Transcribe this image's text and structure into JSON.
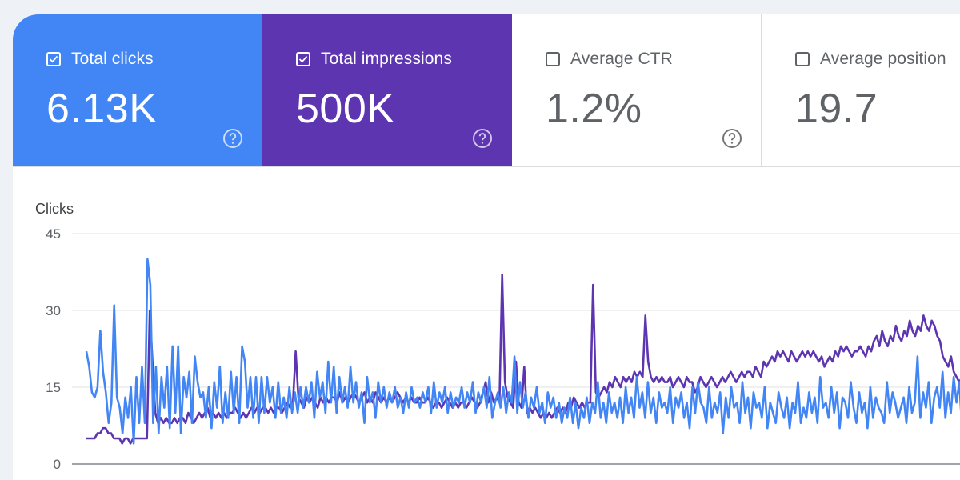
{
  "colors": {
    "clicks": "#4285f4",
    "impressions": "#5e35b1"
  },
  "cards": [
    {
      "label": "Total clicks",
      "value": "6.13K",
      "checked": true,
      "bg": "#4285f4",
      "icon": "help-circle-icon"
    },
    {
      "label": "Total impressions",
      "value": "500K",
      "checked": true,
      "bg": "#5e35b1",
      "icon": "help-circle-icon"
    },
    {
      "label": "Average CTR",
      "value": "1.2%",
      "checked": false,
      "bg": "#ffffff",
      "icon": "help-circle-icon"
    },
    {
      "label": "Average position",
      "value": "19.7",
      "checked": false,
      "bg": "#ffffff",
      "icon": "help-circle-icon"
    }
  ],
  "chart_data": {
    "type": "line",
    "ylabel": "Clicks",
    "ylim": [
      0,
      45
    ],
    "yticks": [
      0,
      15,
      30,
      45
    ],
    "grid": true,
    "series": [
      {
        "values": [
          22,
          19,
          14,
          13,
          15,
          26,
          18,
          14,
          8,
          12,
          31,
          13,
          11,
          6,
          13,
          9,
          15,
          4,
          17,
          8,
          19,
          8,
          40,
          35,
          8,
          19,
          6,
          17,
          11,
          19,
          7,
          23,
          10,
          23,
          6,
          17,
          13,
          18,
          8,
          21,
          16,
          13,
          14,
          9,
          15,
          7,
          16,
          11,
          19,
          8,
          14,
          9,
          18,
          10,
          17,
          8,
          23,
          20,
          11,
          17,
          9,
          17,
          8,
          17,
          10,
          17,
          12,
          15,
          9,
          16,
          10,
          13,
          9,
          15,
          10,
          14,
          10,
          15,
          11,
          15,
          12,
          16,
          9,
          18,
          13,
          16,
          10,
          20,
          12,
          19,
          10,
          17,
          12,
          15,
          11,
          19,
          12,
          16,
          11,
          14,
          8,
          17,
          12,
          14,
          9,
          16,
          12,
          15,
          11,
          14,
          12,
          15,
          11,
          13,
          10,
          14,
          11,
          15,
          12,
          13,
          11,
          14,
          12,
          15,
          10,
          16,
          11,
          14,
          12,
          15,
          10,
          14,
          11,
          13,
          12,
          15,
          11,
          14,
          12,
          16,
          10,
          14,
          12,
          15,
          11,
          17,
          9,
          12,
          14,
          11,
          15,
          10,
          14,
          12,
          21,
          10,
          16,
          11,
          14,
          9,
          13,
          11,
          15,
          10,
          12,
          8,
          14,
          11,
          13,
          9,
          12,
          8,
          11,
          9,
          13,
          8,
          12,
          7,
          11,
          9,
          13,
          8,
          12,
          10,
          16,
          9,
          12,
          8,
          14,
          10,
          12,
          9,
          13,
          8,
          15,
          10,
          13,
          9,
          17,
          11,
          14,
          9,
          16,
          10,
          13,
          8,
          14,
          11,
          12,
          10,
          15,
          8,
          13,
          11,
          14,
          9,
          12,
          7,
          15,
          10,
          16,
          12,
          11,
          8,
          15,
          9,
          12,
          10,
          14,
          6,
          13,
          9,
          15,
          11,
          12,
          8,
          16,
          10,
          13,
          7,
          14,
          11,
          12,
          9,
          15,
          7,
          12,
          10,
          8,
          14,
          11,
          9,
          13,
          7,
          12,
          10,
          16,
          8,
          11,
          9,
          14,
          10,
          13,
          8,
          17,
          11,
          12,
          9,
          15,
          10,
          14,
          7,
          13,
          12,
          9,
          16,
          11,
          8,
          14,
          10,
          12,
          7,
          15,
          9,
          13,
          11,
          10,
          8,
          16,
          10,
          14,
          12,
          9,
          11,
          13,
          8,
          15,
          10,
          12,
          21,
          9,
          14,
          11,
          16,
          8,
          13,
          15,
          11,
          18,
          9,
          14,
          10,
          17,
          12,
          16,
          7,
          20
        ]
      },
      {
        "values": [
          5,
          5,
          5,
          5,
          6,
          6,
          7,
          7,
          6,
          6,
          5,
          5,
          5,
          4,
          5,
          5,
          4,
          5,
          5,
          5,
          5,
          5,
          5,
          30,
          20,
          10,
          8,
          9,
          8,
          9,
          8,
          8,
          9,
          8,
          9,
          9,
          8,
          10,
          9,
          8,
          9,
          10,
          9,
          10,
          11,
          9,
          10,
          9,
          10,
          9,
          10,
          9,
          10,
          10,
          11,
          10,
          9,
          10,
          9,
          10,
          11,
          10,
          11,
          10,
          11,
          11,
          10,
          11,
          10,
          11,
          11,
          10,
          11,
          12,
          11,
          12,
          22,
          13,
          12,
          11,
          13,
          12,
          13,
          12,
          11,
          13,
          12,
          13,
          12,
          13,
          13,
          12,
          14,
          12,
          13,
          12,
          13,
          14,
          13,
          12,
          13,
          14,
          12,
          13,
          12,
          14,
          13,
          12,
          13,
          12,
          13,
          12,
          13,
          14,
          13,
          12,
          13,
          12,
          13,
          12,
          12,
          13,
          12,
          12,
          13,
          12,
          11,
          12,
          12,
          11,
          12,
          13,
          12,
          11,
          12,
          11,
          12,
          12,
          11,
          12,
          13,
          12,
          11,
          12,
          14,
          16,
          12,
          14,
          12,
          13,
          12,
          37,
          16,
          13,
          12,
          11,
          20,
          12,
          11,
          19,
          10,
          11,
          10,
          11,
          10,
          9,
          10,
          9,
          10,
          9,
          10,
          11,
          10,
          11,
          10,
          12,
          11,
          13,
          12,
          11,
          12,
          11,
          12,
          12,
          35,
          14,
          13,
          14,
          15,
          14,
          16,
          15,
          17,
          16,
          15,
          17,
          16,
          17,
          16,
          18,
          17,
          18,
          17,
          29,
          20,
          17,
          16,
          17,
          16,
          17,
          16,
          16,
          17,
          15,
          16,
          17,
          16,
          15,
          17,
          16,
          16,
          14,
          15,
          17,
          16,
          15,
          16,
          17,
          16,
          15,
          16,
          17,
          16,
          17,
          18,
          17,
          16,
          17,
          18,
          17,
          18,
          18,
          17,
          19,
          18,
          17,
          20,
          19,
          20,
          21,
          20,
          22,
          21,
          22,
          21,
          20,
          22,
          21,
          20,
          21,
          22,
          21,
          22,
          21,
          22,
          21,
          20,
          21,
          19,
          20,
          21,
          20,
          22,
          21,
          23,
          22,
          23,
          22,
          21,
          22,
          22,
          23,
          22,
          21,
          23,
          22,
          24,
          25,
          23,
          26,
          24,
          23,
          25,
          24,
          27,
          25,
          24,
          26,
          25,
          28,
          26,
          25,
          27,
          26,
          29,
          27,
          26,
          28,
          27,
          25,
          24,
          21,
          20,
          19,
          21,
          18,
          17,
          16,
          17,
          16
        ]
      }
    ]
  }
}
